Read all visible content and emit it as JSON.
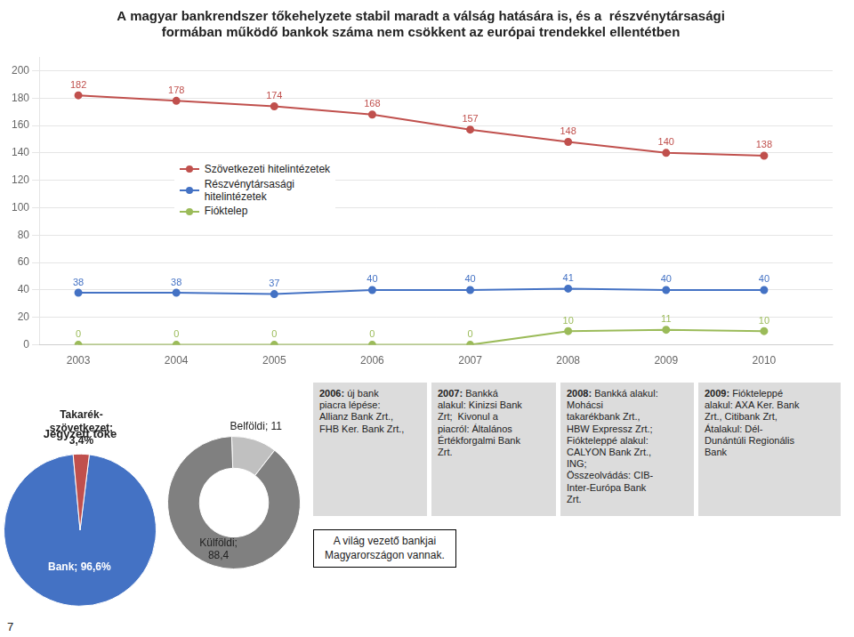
{
  "chart_data": [
    {
      "type": "line",
      "title": "A magyar bankrendszer tőkehelyzete stabil maradt a válság hatására is, és a  részvénytársasági\nformában működő bankok száma nem csökkent az európai trendekkel ellentétben",
      "x": [
        2003,
        2004,
        2005,
        2006,
        2007,
        2008,
        2009,
        2010
      ],
      "xlim": [
        2002.6,
        2010.7
      ],
      "xticks": [
        2003,
        2004,
        2005,
        2006,
        2007,
        2008,
        2009,
        2010
      ],
      "ylim": [
        0,
        210
      ],
      "yticks": [
        0,
        20,
        40,
        60,
        80,
        100,
        120,
        140,
        160,
        180,
        200
      ],
      "series": [
        {
          "name": "Szövetkezeti hitelintézetek",
          "color": "#C0504D",
          "values": [
            182,
            178,
            174,
            168,
            157,
            148,
            140,
            138
          ]
        },
        {
          "name": "Részvénytársasági\nhitelintézetek",
          "color": "#4472C4",
          "values": [
            38,
            38,
            37,
            40,
            40,
            41,
            40,
            40
          ]
        },
        {
          "name": "Fióktelep",
          "color": "#9BBB59",
          "values": [
            0,
            0,
            0,
            0,
            0,
            10,
            11,
            10
          ]
        }
      ],
      "marker": "circle",
      "data_labels": true,
      "grid": "y",
      "legend": "upper left",
      "annotations": [
        {
          "text": "A világ vezető bankjai\nMagyarországon vannak."
        },
        {
          "title": "2006:",
          "text": " új bank\npiacra lépése:\nAllianz Bank Zrt.,\nFHB Ker. Bank Zrt.,"
        },
        {
          "title": "2007:",
          "text": " Bankká\nalakul: Kinizsi Bank\nZrt;  Kivonul a\npiacról: Általános\nÉrtékforgalmi Bank\nZrt."
        },
        {
          "title": "2008:",
          "text": " Bankká alakul:\nMohácsi\ntakarékbank Zrt.,\nHBW Expressz Zrt.;\nFiókteleppé alakul:\nCALYON Bank Zrt.,\nING;\nÖsszeolvádás: CIB-\nInter-Európa Bank\nZrt."
        },
        {
          "title": "2009:",
          "text": " Fiókteleppé\nalakul: AXA Ker. Bank\nZrt., Citibank Zrt,\nÁtalakul: Dél-\nDunántúli Regionális\nBank"
        },
        {
          "text": "7"
        }
      ]
    },
    {
      "type": "pie",
      "title": "Jegyzett tőke",
      "values": [
        96.6,
        3.4
      ],
      "value_labels": [
        "Bank; 96,6%",
        "Takarék-\nszövetkezet;\n3,4%"
      ],
      "colors": [
        "#4472C4",
        "#C0504D"
      ]
    },
    {
      "type": "doughnut",
      "values": [
        11,
        88.4
      ],
      "value_labels": [
        "Belföldi; 11",
        "Külföldi;\n88,4"
      ],
      "colors": [
        "#C0C0C0",
        "#808080"
      ]
    }
  ]
}
